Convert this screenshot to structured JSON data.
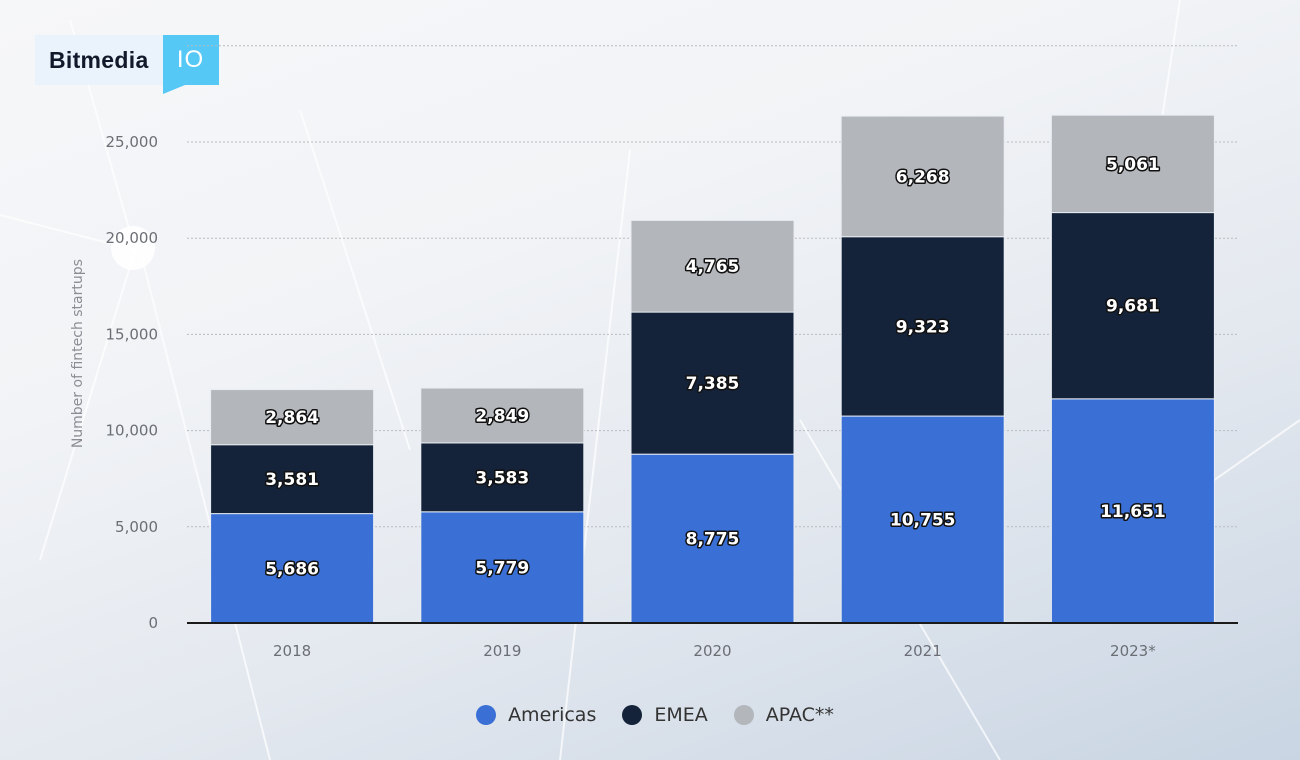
{
  "logo": {
    "brand": "Bitmedia",
    "badge": "IO"
  },
  "chart_data": {
    "type": "bar",
    "stacked": true,
    "title": "",
    "xlabel": "",
    "ylabel": "Number of fintech startups",
    "ylim": [
      0,
      30000
    ],
    "yticks": [
      0,
      5000,
      10000,
      15000,
      20000,
      25000
    ],
    "ytick_labels": [
      "0",
      "5,000",
      "10,000",
      "15,000",
      "20,000",
      "25,000"
    ],
    "grid": true,
    "categories": [
      "2018",
      "2019",
      "2020",
      "2021",
      "2023*"
    ],
    "series": [
      {
        "name": "Americas",
        "color": "#3a70d6",
        "values": [
          5686,
          5779,
          8775,
          10755,
          11651
        ],
        "labels": [
          "5,686",
          "5,779",
          "8,775",
          "10,755",
          "11,651"
        ]
      },
      {
        "name": "EMEA",
        "color": "#15233a",
        "values": [
          3581,
          3583,
          7385,
          9323,
          9681
        ],
        "labels": [
          "3,581",
          "3,583",
          "7,385",
          "9,323",
          "9,681"
        ]
      },
      {
        "name": "APAC**",
        "color": "#b3b6bb",
        "values": [
          2864,
          2849,
          4765,
          6268,
          5061
        ],
        "labels": [
          "2,864",
          "2,849",
          "4,765",
          "6,268",
          "5,061"
        ]
      }
    ],
    "legend_position": "bottom-center"
  }
}
